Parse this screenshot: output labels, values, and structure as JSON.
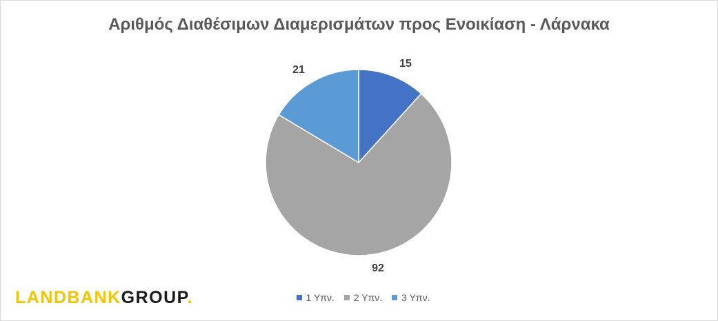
{
  "chart_data": {
    "type": "pie",
    "title": "Αριθμός Διαθέσιμων Διαμερισμάτων προς Ενοικίαση - Λάρνακα",
    "categories": [
      "1 Υπν.",
      "2 Υπν.",
      "3 Υπν."
    ],
    "values": [
      15,
      92,
      21
    ],
    "colors": [
      "#4472c4",
      "#a5a5a5",
      "#5b9bd5"
    ],
    "data_labels": [
      "15",
      "92",
      "21"
    ],
    "legend_placement": "bottom"
  },
  "branding": {
    "logo_text_part1": "LANDBANK",
    "logo_text_part2": "GROUP",
    "logo_dot": ".",
    "logo_colors": [
      "#f3c400",
      "#1a1a1a"
    ]
  }
}
